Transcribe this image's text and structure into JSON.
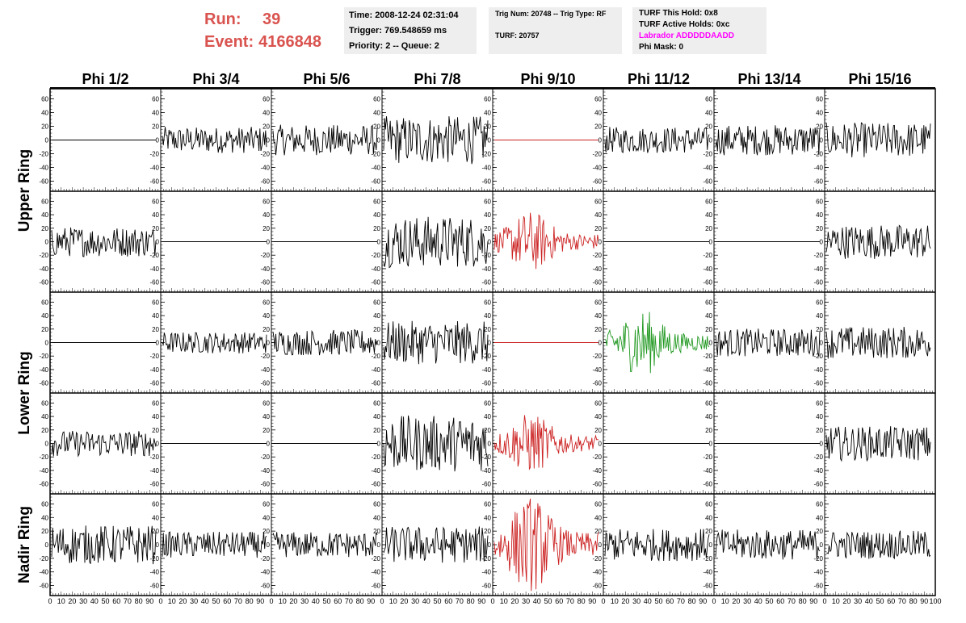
{
  "header": {
    "run_label": "Run:",
    "run_value": "39",
    "event_label": "Event:",
    "event_value": "4166848"
  },
  "info_time": {
    "time": "Time: 2008-12-24 02:31:04",
    "trigger": "Trigger: 769.548659 ms",
    "priority": "Priority: 2 -- Queue: 2"
  },
  "info_trig": {
    "trig": "Trig Num: 20748 -- Trig Type: RF",
    "turf": "TURF: 20757"
  },
  "info_turf": {
    "this_hold": "TURF This Hold: 0x8",
    "active_holds": "TURF Active Holds: 0xc",
    "labrador": "Labrador ADDDDDAADD",
    "phi_mask": "Phi Mask: 0"
  },
  "colors": {
    "normal": "#000000",
    "triggered": "#cc2222",
    "l3_trigger": "#229922",
    "labrador": "#ff00ff",
    "title_red": "#d9534f",
    "panel_bg": "#eeeeee"
  },
  "chart_data": {
    "type": "line",
    "columns": [
      "Phi 1/2",
      "Phi 3/4",
      "Phi 5/6",
      "Phi 7/8",
      "Phi 9/10",
      "Phi 11/12",
      "Phi 13/14",
      "Phi 15/16"
    ],
    "row_groups": [
      {
        "label": "Upper Ring",
        "rows": [
          0,
          1
        ]
      },
      {
        "label": "Lower Ring",
        "rows": [
          2,
          3
        ]
      },
      {
        "label": "Nadir Ring",
        "rows": [
          4
        ]
      }
    ],
    "ylim": [
      -70,
      70
    ],
    "yticks": [
      "-60",
      "-40",
      "-20",
      "0",
      "20",
      "40",
      "60"
    ],
    "xlim": [
      0,
      100
    ],
    "xticks": [
      "0",
      "10",
      "20",
      "30",
      "40",
      "50",
      "60",
      "70",
      "80",
      "90",
      "100"
    ],
    "cells": [
      [
        {
          "amp": 0,
          "color": "black",
          "env": "flat"
        },
        {
          "amp": 12,
          "color": "black",
          "env": "noise"
        },
        {
          "amp": 14,
          "color": "black",
          "env": "noise"
        },
        {
          "amp": 22,
          "color": "black",
          "env": "noise"
        },
        {
          "amp": 0,
          "color": "red",
          "env": "flat"
        },
        {
          "amp": 12,
          "color": "black",
          "env": "noise"
        },
        {
          "amp": 14,
          "color": "black",
          "env": "noise"
        },
        {
          "amp": 16,
          "color": "black",
          "env": "noise"
        }
      ],
      [
        {
          "amp": 14,
          "color": "black",
          "env": "noise"
        },
        {
          "amp": 0,
          "color": "black",
          "env": "flat"
        },
        {
          "amp": 0,
          "color": "black",
          "env": "flat"
        },
        {
          "amp": 24,
          "color": "black",
          "env": "noise"
        },
        {
          "amp": 18,
          "color": "red",
          "env": "pulse"
        },
        {
          "amp": 0,
          "color": "black",
          "env": "flat"
        },
        {
          "amp": 0,
          "color": "black",
          "env": "flat"
        },
        {
          "amp": 16,
          "color": "black",
          "env": "noise"
        }
      ],
      [
        {
          "amp": 0,
          "color": "black",
          "env": "flat"
        },
        {
          "amp": 10,
          "color": "black",
          "env": "noise"
        },
        {
          "amp": 12,
          "color": "black",
          "env": "noise"
        },
        {
          "amp": 20,
          "color": "black",
          "env": "noise"
        },
        {
          "amp": 0,
          "color": "red",
          "env": "flat"
        },
        {
          "amp": 20,
          "color": "green",
          "env": "pulse"
        },
        {
          "amp": 13,
          "color": "black",
          "env": "noise"
        },
        {
          "amp": 15,
          "color": "black",
          "env": "noise"
        }
      ],
      [
        {
          "amp": 12,
          "color": "black",
          "env": "noise"
        },
        {
          "amp": 0,
          "color": "black",
          "env": "flat"
        },
        {
          "amp": 0,
          "color": "black",
          "env": "flat"
        },
        {
          "amp": 26,
          "color": "black",
          "env": "noise"
        },
        {
          "amp": 18,
          "color": "red",
          "env": "pulse"
        },
        {
          "amp": 0,
          "color": "black",
          "env": "flat"
        },
        {
          "amp": 0,
          "color": "black",
          "env": "flat"
        },
        {
          "amp": 16,
          "color": "black",
          "env": "noise"
        }
      ],
      [
        {
          "amp": 18,
          "color": "black",
          "env": "noise"
        },
        {
          "amp": 12,
          "color": "black",
          "env": "noise"
        },
        {
          "amp": 12,
          "color": "black",
          "env": "noise"
        },
        {
          "amp": 17,
          "color": "black",
          "env": "noise"
        },
        {
          "amp": 28,
          "color": "red",
          "env": "pulse"
        },
        {
          "amp": 15,
          "color": "black",
          "env": "noise"
        },
        {
          "amp": 14,
          "color": "black",
          "env": "noise"
        },
        {
          "amp": 13,
          "color": "black",
          "env": "noise"
        }
      ]
    ]
  }
}
